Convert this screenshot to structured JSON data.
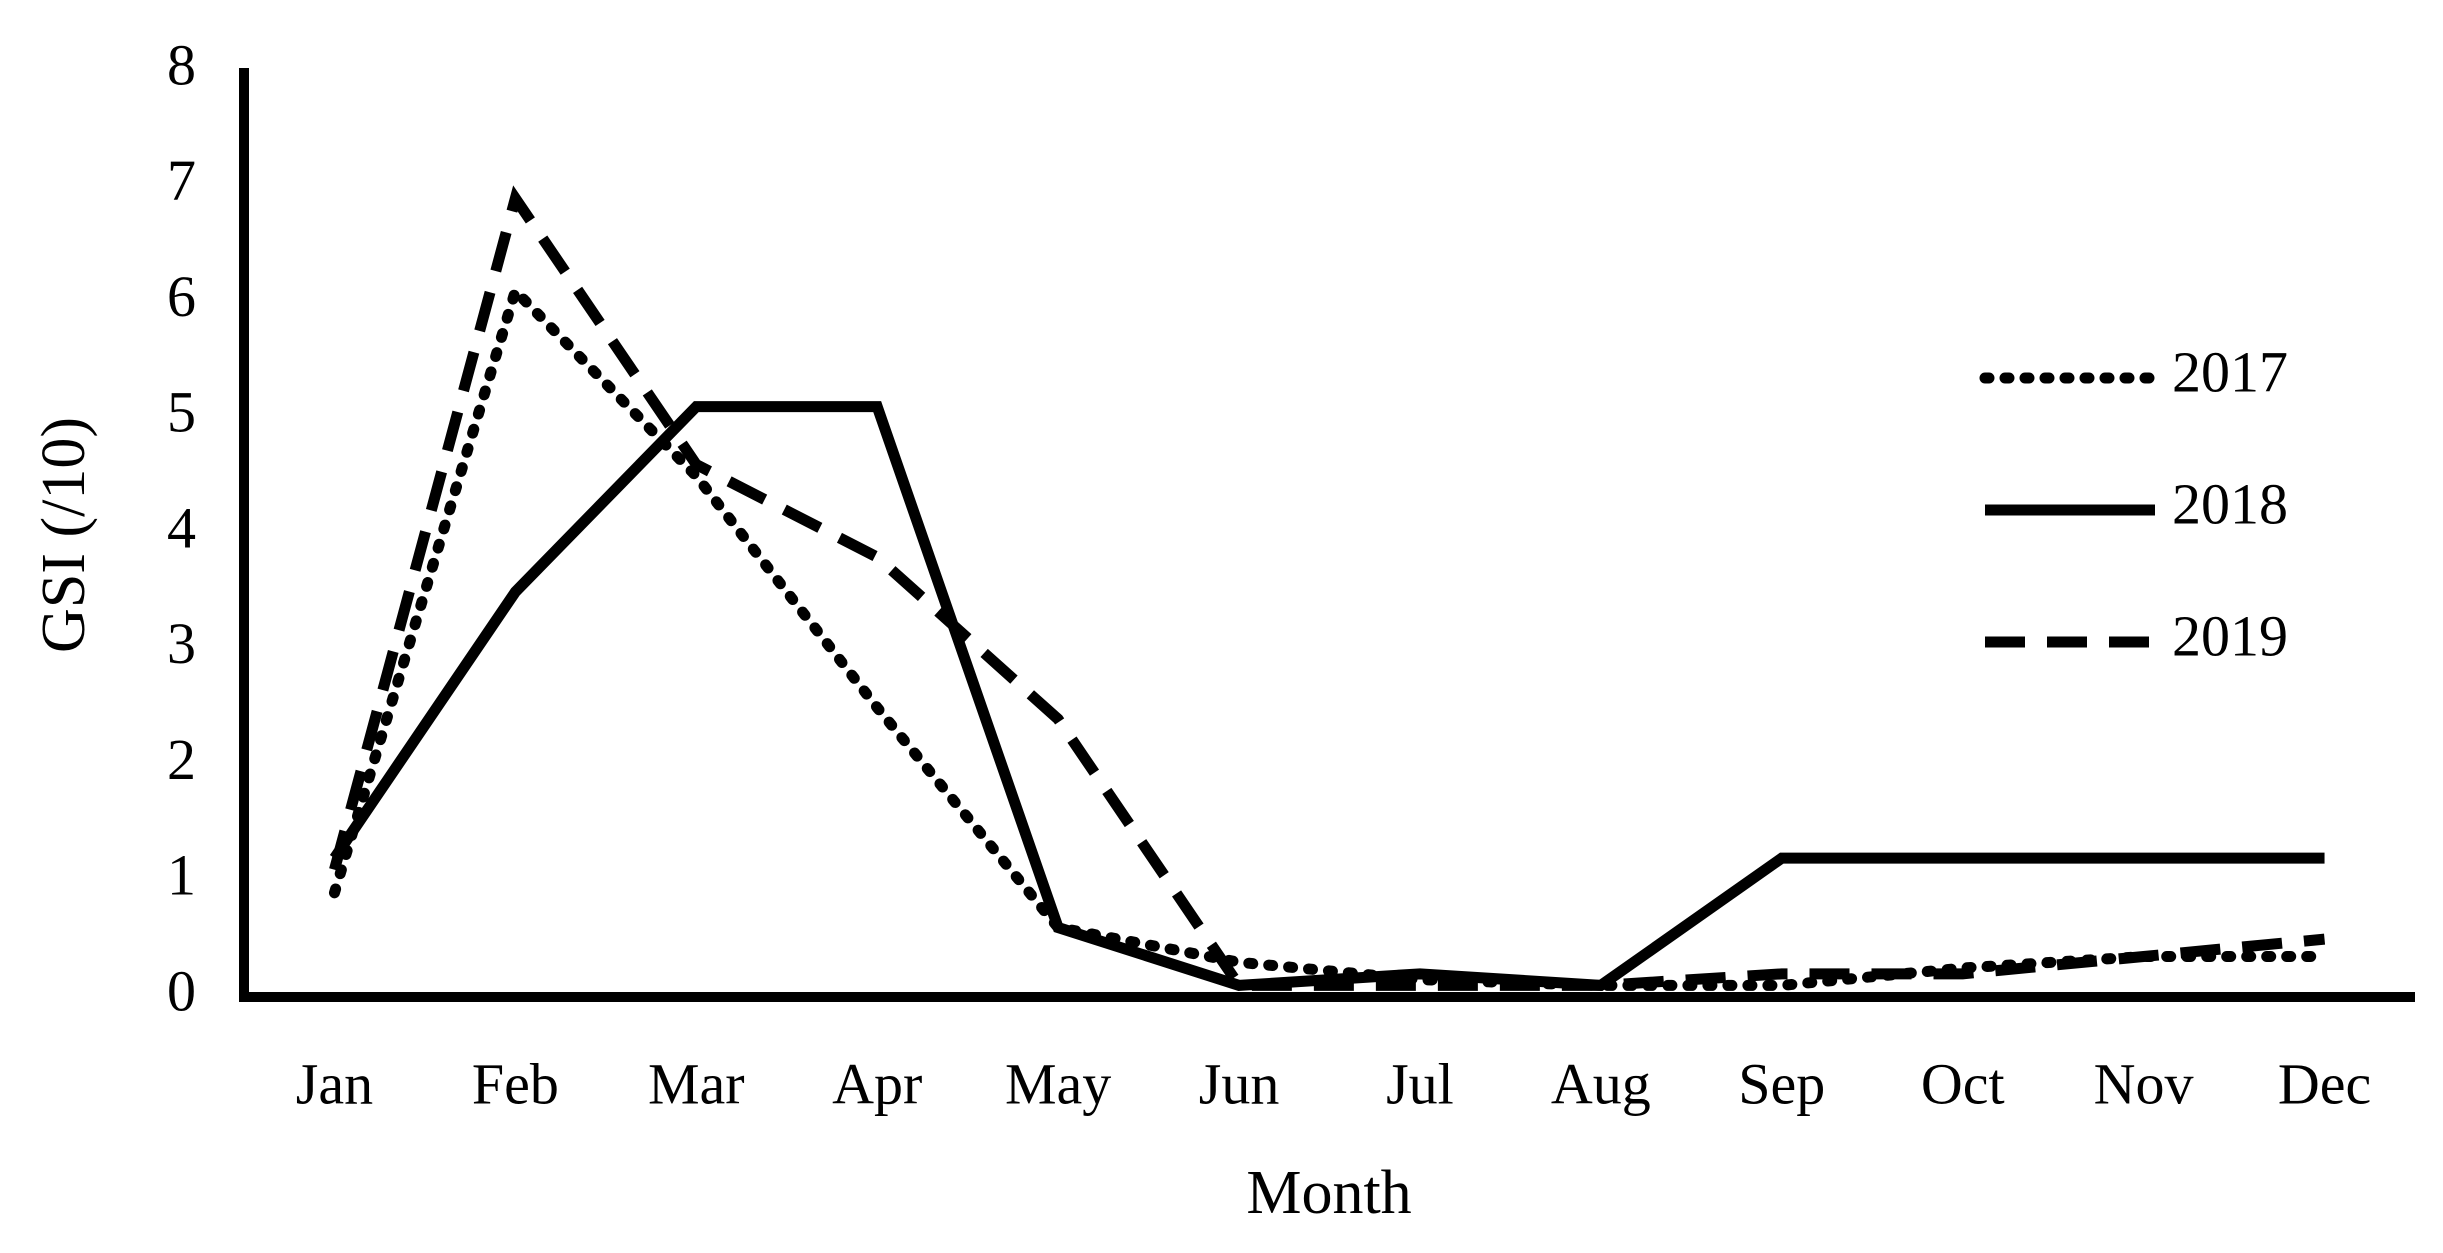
{
  "chart_data": {
    "type": "line",
    "x_label": "Month",
    "y_label": "GSI (/10)",
    "categories": [
      "Jan",
      "Feb",
      "Mar",
      "Apr",
      "May",
      "Jun",
      "Jul",
      "Aug",
      "Sep",
      "Oct",
      "Nov",
      "Dec"
    ],
    "series": [
      {
        "name": "2017",
        "color": "#000000",
        "style": "dotted",
        "values": [
          0.9,
          6.1,
          4.5,
          2.5,
          0.6,
          0.3,
          0.15,
          0.1,
          0.1,
          0.25,
          0.35,
          0.35
        ]
      },
      {
        "name": "2018",
        "color": "#000000",
        "style": "solid",
        "values": [
          1.2,
          3.5,
          5.1,
          5.1,
          0.6,
          0.1,
          0.2,
          0.1,
          1.2,
          1.2,
          1.2,
          1.2
        ]
      },
      {
        "name": "2019",
        "color": "#000000",
        "style": "dashed",
        "values": [
          1.1,
          6.9,
          4.6,
          3.8,
          2.4,
          0.1,
          0.1,
          0.1,
          0.2,
          0.2,
          0.35,
          0.5
        ]
      }
    ],
    "ylim": [
      0,
      8
    ],
    "yticks": [
      0,
      1,
      2,
      3,
      4,
      5,
      6,
      7,
      8
    ],
    "grid": false,
    "legend": "right"
  }
}
